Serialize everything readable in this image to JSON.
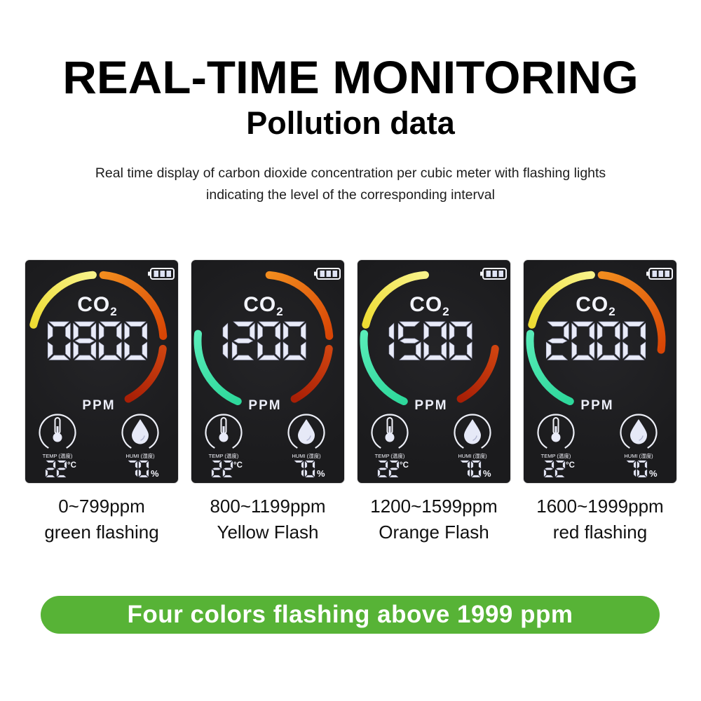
{
  "header": {
    "title": "REAL-TIME MONITORING",
    "subtitle": "Pollution data",
    "description": [
      "Real time display of carbon dioxide concentration per cubic meter with flashing lights",
      "indicating the level of the corresponding interval"
    ]
  },
  "banner": {
    "text": "Four colors flashing above 1999 ppm",
    "color": "#57b336"
  },
  "device_common": {
    "gas_label": "CO",
    "gas_subscript": "2",
    "unit_label": "PPM",
    "battery_icon": "battery-icon",
    "temperature": {
      "icon": "thermometer-icon",
      "label": "TEMP (温度)",
      "value": "22",
      "unit": "°C"
    },
    "humidity": {
      "icon": "water-drop-icon",
      "label": "HUMI (湿度)",
      "value": "70",
      "unit": "%"
    },
    "digit_color": "#e9ebf8",
    "screen_color": "#1b1b1d"
  },
  "arc_colors": {
    "green": {
      "start": "#2ed89b",
      "end": "#58ecb8"
    },
    "yellow": {
      "start": "#eedc33",
      "end": "#f8f389"
    },
    "orange": {
      "start": "#f28c1e",
      "end": "#d84505"
    },
    "red": {
      "start": "#cf4410",
      "end": "#a81f06"
    }
  },
  "arc_geometry": {
    "green": [
      203,
      276
    ],
    "yellow": [
      284,
      356
    ],
    "orange": [
      5,
      86
    ],
    "orange_long": [
      5,
      98
    ],
    "red": [
      97,
      152
    ]
  },
  "devices": [
    {
      "reading": "0800",
      "arcs": [
        "yellow",
        "orange",
        "red"
      ],
      "range": "0~799ppm",
      "flash": "green flashing"
    },
    {
      "reading": "1200",
      "arcs": [
        "green",
        "orange",
        "red"
      ],
      "range": "800~1199ppm",
      "flash": "Yellow Flash"
    },
    {
      "reading": "1500",
      "arcs": [
        "yellow",
        "green",
        "red"
      ],
      "range": "1200~1599ppm",
      "flash": "Orange Flash"
    },
    {
      "reading": "2000",
      "arcs": [
        "yellow",
        "green",
        "orange_long"
      ],
      "range": "1600~1999ppm",
      "flash": "red flashing"
    }
  ]
}
